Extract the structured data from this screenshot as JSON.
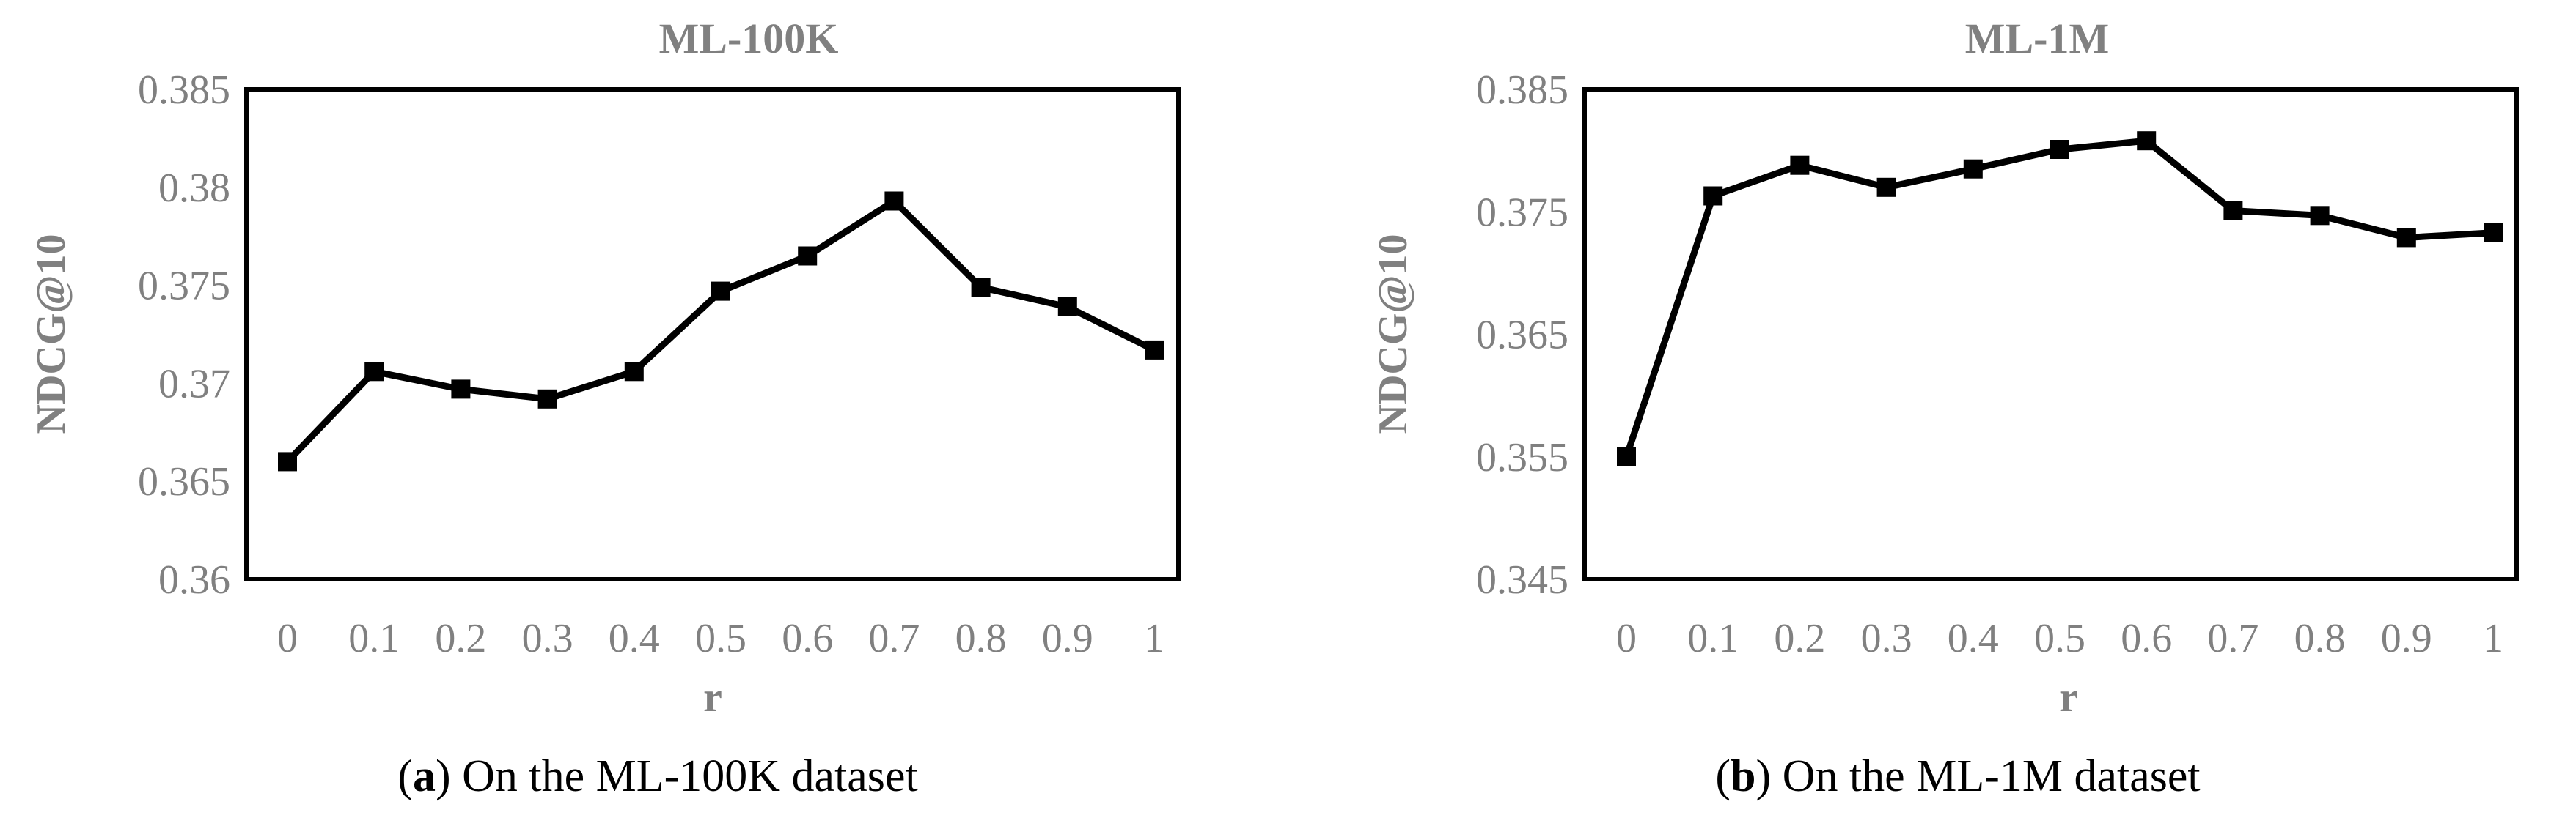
{
  "chart_data": [
    {
      "type": "line",
      "title": "ML-100K",
      "xlabel": "r",
      "ylabel": "NDCG@10",
      "caption_letter": "a",
      "caption_text": "On the ML-100K dataset",
      "x": [
        0,
        0.1,
        0.2,
        0.3,
        0.4,
        0.5,
        0.6,
        0.7,
        0.8,
        0.9,
        1
      ],
      "x_tick_labels": [
        "0",
        "0.1",
        "0.2",
        "0.3",
        "0.4",
        "0.5",
        "0.6",
        "0.7",
        "0.8",
        "0.9",
        "1"
      ],
      "ylim": [
        0.36,
        0.385
      ],
      "y_ticks": [
        0.36,
        0.365,
        0.37,
        0.375,
        0.38,
        0.385
      ],
      "y_tick_labels": [
        "0.36",
        "0.365",
        "0.37",
        "0.375",
        "0.38",
        "0.385"
      ],
      "grid": false,
      "legend": "none",
      "series": [
        {
          "values": [
            0.366,
            0.3706,
            0.3697,
            0.3692,
            0.3706,
            0.3747,
            0.3765,
            0.3793,
            0.3749,
            0.3739,
            0.3717
          ]
        }
      ]
    },
    {
      "type": "line",
      "title": "ML-1M",
      "xlabel": "r",
      "ylabel": "NDCG@10",
      "caption_letter": "b",
      "caption_text": "On the ML-1M dataset",
      "x": [
        0,
        0.1,
        0.2,
        0.3,
        0.4,
        0.5,
        0.6,
        0.7,
        0.8,
        0.9,
        1
      ],
      "x_tick_labels": [
        "0",
        "0.1",
        "0.2",
        "0.3",
        "0.4",
        "0.5",
        "0.6",
        "0.7",
        "0.8",
        "0.9",
        "1"
      ],
      "ylim": [
        0.345,
        0.385
      ],
      "y_ticks": [
        0.345,
        0.355,
        0.365,
        0.375,
        0.385
      ],
      "y_tick_labels": [
        "0.345",
        "0.355",
        "0.365",
        "0.375",
        "0.385"
      ],
      "grid": false,
      "legend": "none",
      "series": [
        {
          "values": [
            0.355,
            0.3763,
            0.3788,
            0.377,
            0.3785,
            0.3801,
            0.3808,
            0.3751,
            0.3747,
            0.3729,
            0.3733
          ]
        }
      ]
    }
  ]
}
